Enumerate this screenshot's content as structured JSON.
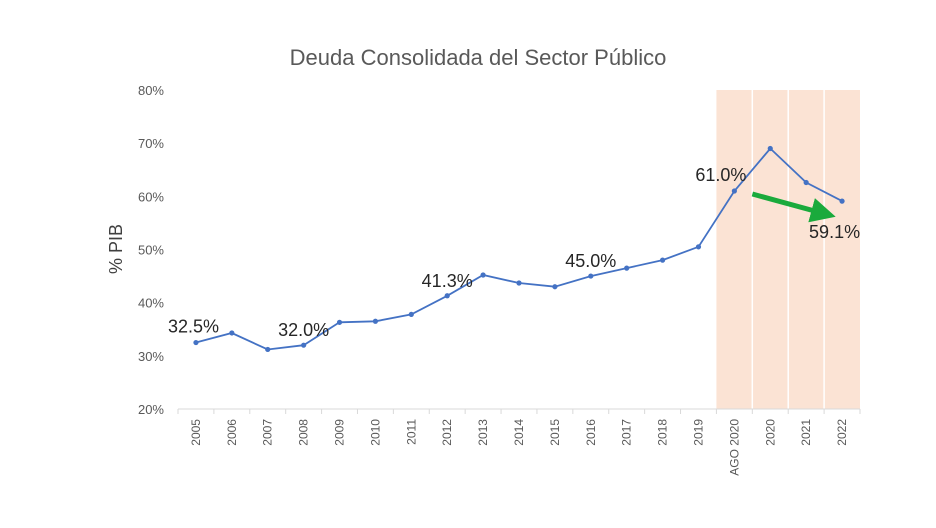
{
  "chart_data": {
    "type": "line",
    "title": "Deuda Consolidada del Sector Público",
    "ylabel": "% PIB",
    "xlabel": "",
    "ylim": [
      20,
      80
    ],
    "ytick_step": 10,
    "ytick_suffix": "%",
    "grid": false,
    "legend": "none",
    "categories": [
      "2005",
      "2006",
      "2007",
      "2008",
      "2009",
      "2010",
      "2011",
      "2012",
      "2013",
      "2014",
      "2015",
      "2016",
      "2017",
      "2018",
      "2019",
      "AGO 2020",
      "2020",
      "2021",
      "2022"
    ],
    "series": [
      {
        "values": [
          32.5,
          34.3,
          31.2,
          32.0,
          36.3,
          36.5,
          37.8,
          41.3,
          45.2,
          43.7,
          43.0,
          45.0,
          46.5,
          48.0,
          50.5,
          61.0,
          69.0,
          62.6,
          59.1
        ]
      }
    ],
    "data_labels": [
      {
        "index": 0,
        "text": "32.5%"
      },
      {
        "index": 3,
        "text": "32.0%"
      },
      {
        "index": 7,
        "text": "41.3%"
      },
      {
        "index": 11,
        "text": "45.0%"
      },
      {
        "index": 15,
        "text": "61.0%"
      },
      {
        "index": 18,
        "text": "59.1%"
      }
    ],
    "highlight": {
      "from_category": "AGO 2020",
      "to_category": "2022",
      "color": "#fbe3d4",
      "divider_color": "#ffffff"
    },
    "trend_arrow": {
      "from_category": "AGO 2020",
      "to_category": "2022",
      "color": "#1aaa3c",
      "direction": "down"
    },
    "colors": {
      "line": "#4472c4",
      "axis": "#d9d9d9",
      "text": "#595959"
    }
  }
}
